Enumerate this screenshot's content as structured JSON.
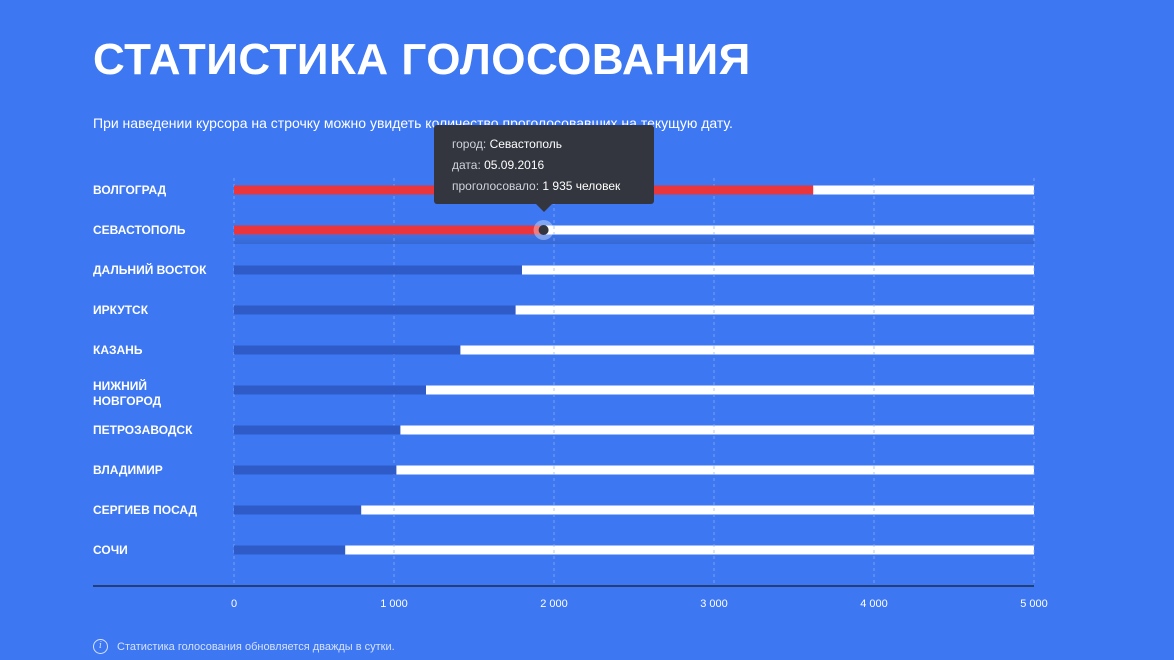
{
  "header": {
    "title": "СТАТИСТИКА ГОЛОСОВАНИЯ",
    "subtitle": "При наведении курсора на строчку можно увидеть количество проголосовавших на текущую дату."
  },
  "tooltip": {
    "city_label": "город:",
    "city_value": "Севастополь",
    "date_label": "дата:",
    "date_value": "05.09.2016",
    "votes_label": "проголосовало:",
    "votes_value": "1 935 человек"
  },
  "footnote": {
    "icon": "info-icon",
    "text": "Статистика голосования обновляется дважды в сутки."
  },
  "colors": {
    "background": "#3d77f2",
    "track": "#ffffff",
    "bar": "#2f5bc9",
    "highlight": "#e8363c"
  },
  "chart_data": {
    "type": "bar",
    "orientation": "horizontal",
    "categories": [
      "ВОЛГОГРАД",
      "СЕВАСТОПОЛЬ",
      "ДАЛЬНИЙ ВОСТОК",
      "ИРКУТСК",
      "КАЗАНЬ",
      "НИЖНИЙ НОВГОРОД",
      "ПЕТРОЗАВОДСК",
      "ВЛАДИМИР",
      "СЕРГИЕВ ПОСАД",
      "СОЧИ"
    ],
    "values": [
      3620,
      1935,
      1800,
      1760,
      1415,
      1200,
      1040,
      1015,
      795,
      695
    ],
    "highlighted": [
      "ВОЛГОГРАД",
      "СЕВАСТОПОЛЬ"
    ],
    "xlim": [
      0,
      5000
    ],
    "xticks": [
      0,
      1000,
      2000,
      3000,
      4000,
      5000
    ],
    "xtick_labels": [
      "0",
      "1 000",
      "2 000",
      "3 000",
      "4 000",
      "5 000"
    ],
    "grid": true
  }
}
